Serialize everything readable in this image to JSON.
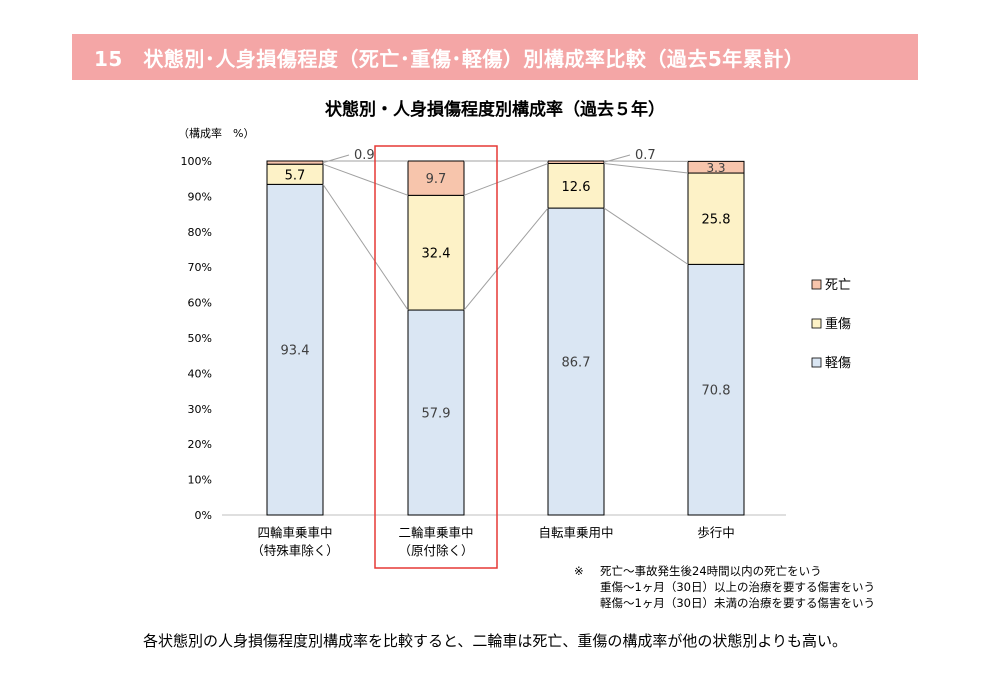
{
  "header": {
    "title": "15　状態別･人身損傷程度（死亡･重傷･軽傷）別構成率比較（過去5年累計）"
  },
  "chart_data": {
    "type": "bar",
    "stacked": true,
    "title": "状態別・人身損傷程度別構成率（過去５年）",
    "ylabel": "（構成率　%）",
    "ylim": [
      0,
      100
    ],
    "yticks": [
      "0%",
      "10%",
      "20%",
      "30%",
      "40%",
      "50%",
      "60%",
      "70%",
      "80%",
      "90%",
      "100%"
    ],
    "categories": [
      [
        "四輪車乗車中",
        "（特殊車除く）"
      ],
      [
        "二輪車乗車中",
        "（原付除く）"
      ],
      [
        "自転車乗用中"
      ],
      [
        "歩行中"
      ]
    ],
    "series": [
      {
        "name": "軽傷",
        "values": [
          93.4,
          57.9,
          86.7,
          70.8
        ],
        "color": "#dae6f3"
      },
      {
        "name": "重傷",
        "values": [
          5.7,
          32.4,
          12.6,
          25.8
        ],
        "color": "#fdf2c7"
      },
      {
        "name": "死亡",
        "values": [
          0.9,
          9.7,
          0.7,
          3.3
        ],
        "color": "#f7c5ac"
      }
    ],
    "legend_position": "right",
    "highlight_category_index": 1,
    "highlight_color": "#e53935"
  },
  "notes": {
    "mark": "※",
    "lines": [
      "死亡～事故発生後24時間以内の死亡をいう",
      "重傷～1ヶ月（30日）以上の治療を要する傷害をいう",
      "軽傷～1ヶ月（30日）未満の治療を要する傷害をいう"
    ]
  },
  "summary": "各状態別の人身損傷程度別構成率を比較すると、二輪車は死亡、重傷の構成率が他の状態別よりも高い。"
}
